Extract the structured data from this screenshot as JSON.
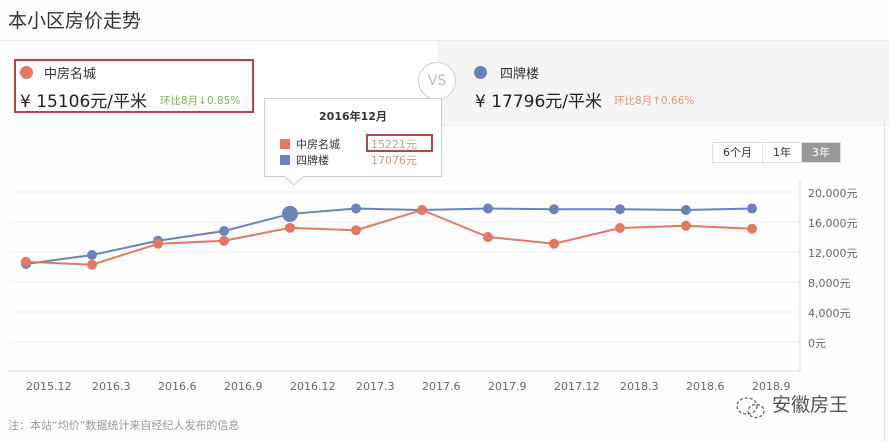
{
  "page": {
    "title": "本小区房价走势"
  },
  "compare": {
    "left": {
      "name": "中房名城",
      "price": "¥  15106元/平米",
      "change": "环比8月↓0.85%",
      "dot_color": "#e07a64",
      "change_color": "#7fae5a"
    },
    "vs": "VS",
    "right": {
      "name": "四牌楼",
      "price": "¥  17796元/平米",
      "change": "环比8月↑0.66%",
      "dot_color": "#6f82b8",
      "change_color": "#e09a7a"
    }
  },
  "range_buttons": [
    {
      "label": "6个月",
      "active": false
    },
    {
      "label": "1年",
      "active": false
    },
    {
      "label": "3年",
      "active": true
    }
  ],
  "tooltip": {
    "title": "2016年12月",
    "rows": [
      {
        "name": "中房名城",
        "value": "15221元",
        "color": "#e07a64"
      },
      {
        "name": "四牌楼",
        "value": "17076元",
        "color": "#6f82b8"
      }
    ]
  },
  "chart_data": {
    "type": "line",
    "title": "本小区房价走势",
    "xlabel": "",
    "ylabel": "",
    "categories": [
      "2015.12",
      "2016.3",
      "2016.6",
      "2016.9",
      "2016.12",
      "2017.3",
      "2017.6",
      "2017.9",
      "2017.12",
      "2018.3",
      "2018.6",
      "2018.9"
    ],
    "series": [
      {
        "name": "中房名城",
        "color": "#e07a64",
        "values": [
          10700,
          10300,
          13100,
          13500,
          15221,
          14900,
          17600,
          14000,
          13100,
          15200,
          15500,
          15106
        ]
      },
      {
        "name": "四牌楼",
        "color": "#6f82b8",
        "values": [
          10400,
          11600,
          13500,
          14800,
          17076,
          17800,
          17600,
          17800,
          17700,
          17700,
          17600,
          17796
        ]
      }
    ],
    "yticks": [
      "20,000元",
      "16,000元",
      "12,000元",
      "8,000元",
      "4,000元",
      "0元"
    ],
    "ylim": [
      0,
      20000
    ],
    "grid": true,
    "legend_position": "top",
    "highlight": {
      "category": "2016.12"
    }
  },
  "footnote": "注：本站“均价”数据统计来自经纪人发布的信息",
  "watermark": "安徽房王"
}
